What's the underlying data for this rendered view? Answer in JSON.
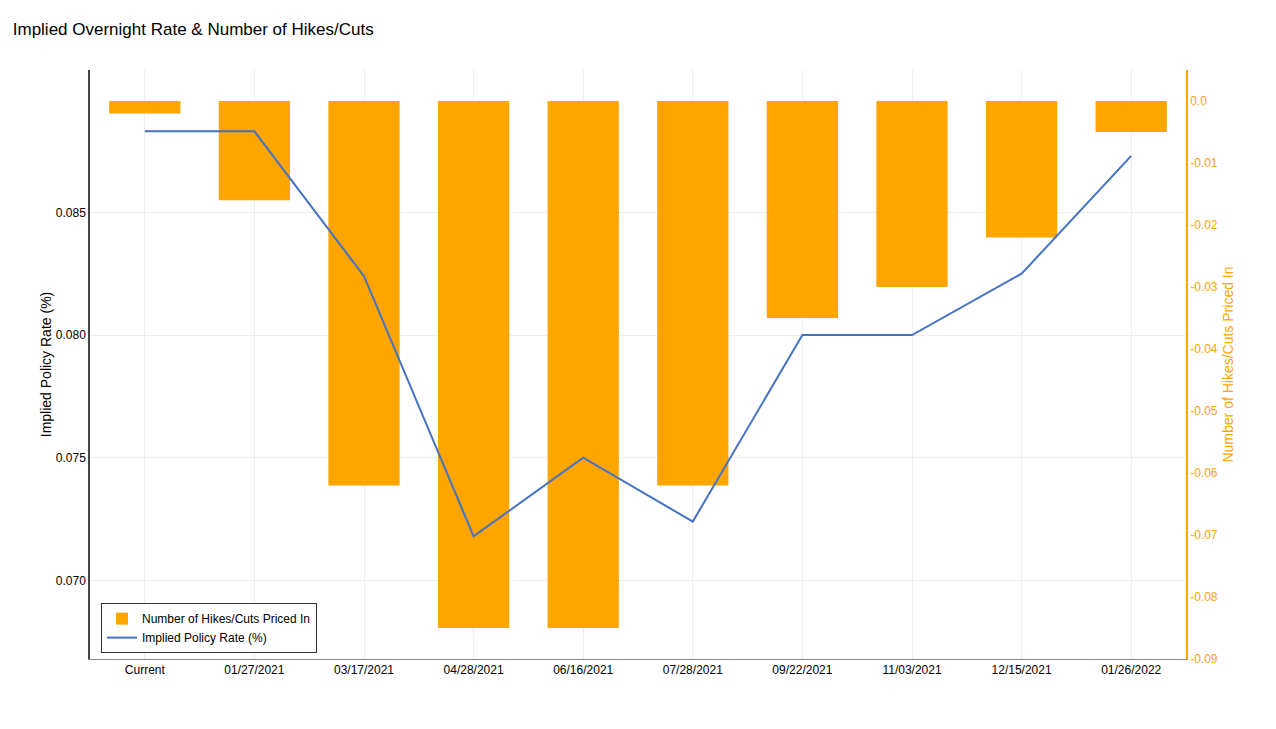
{
  "chart_data": {
    "type": "bar",
    "title": "Implied Overnight Rate & Number of Hikes/Cuts",
    "categories": [
      "Current",
      "01/27/2021",
      "03/17/2021",
      "04/28/2021",
      "06/16/2021",
      "07/28/2021",
      "09/22/2021",
      "11/03/2021",
      "12/15/2021",
      "01/26/2022"
    ],
    "series": [
      {
        "name": "Implied Policy Rate (%)",
        "type": "line",
        "color": "#4472C4",
        "values": [
          0.0883,
          0.0883,
          0.0824,
          0.0718,
          0.075,
          0.0724,
          0.08,
          0.08,
          0.0825,
          0.0873
        ]
      },
      {
        "name": "Number of Hikes/Cuts Priced In",
        "type": "bar",
        "color": "#FFA500",
        "axis": "y2",
        "values": [
          -0.002,
          -0.016,
          -0.062,
          -0.085,
          -0.085,
          -0.062,
          -0.035,
          -0.03,
          -0.022,
          -0.005
        ]
      }
    ],
    "ylabel": "Implied Policy Rate (%)",
    "y2label": "Number of Hikes/Cuts Priced In",
    "ylim": [
      0.0668,
      0.0908
    ],
    "yticks": [
      {
        "value": 0.07,
        "label": "0.070"
      },
      0.075,
      {
        "value": 0.08,
        "label": "0.080"
      },
      0.085
    ],
    "y2lim": [
      -0.09,
      0.005
    ],
    "y2ticks": [
      -0.09,
      -0.08,
      -0.07,
      -0.06,
      -0.05,
      -0.04,
      -0.03,
      -0.02,
      -0.01,
      {
        "value": 0,
        "label": "0.0"
      }
    ],
    "grid": true,
    "legend": "lower left"
  }
}
